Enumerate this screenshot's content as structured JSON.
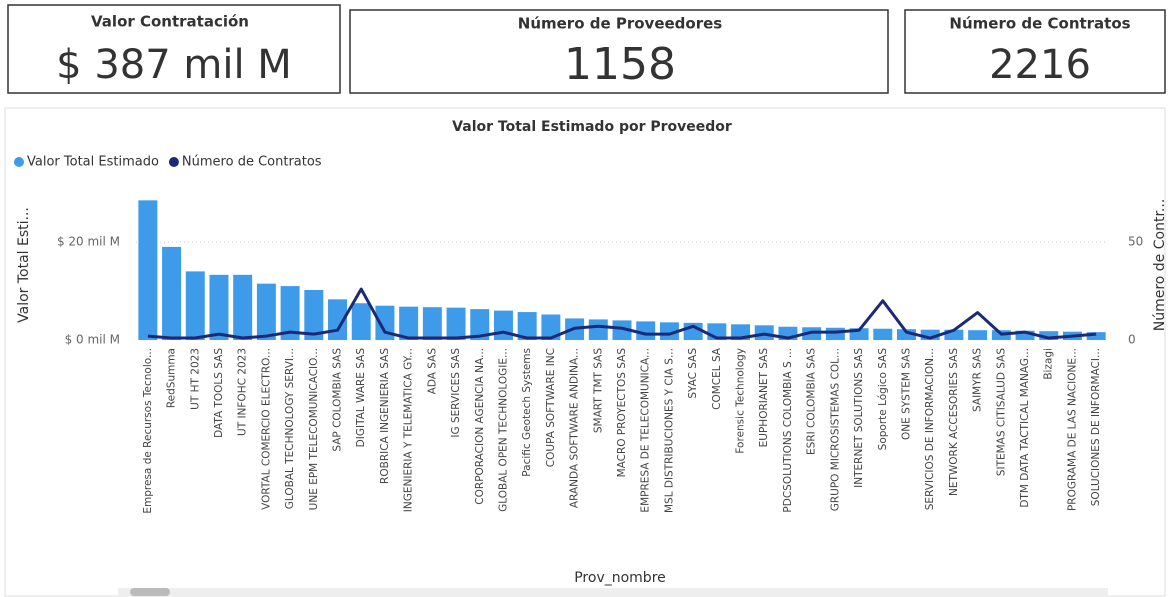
{
  "cards": [
    {
      "title": "Valor Contratación",
      "value": "$ 387 mil M"
    },
    {
      "title": "Número de Proveedores",
      "value": "1158"
    },
    {
      "title": "Número de Contratos",
      "value": "2216"
    }
  ],
  "chart_data": {
    "type": "bar_line",
    "title": "Valor Total Estimado por Proveedor",
    "x_label": "Prov_nombre",
    "y_label": "Valor Total Esti...",
    "y2_label": "Número de Contr...",
    "categories": [
      "Empresa de Recursos Tecnolo...",
      "RedSumma",
      "UT HT 2023",
      "DATA TOOLS SAS",
      "UT INFOHC 2023",
      "VORTAL COMERCIO ELECTRO...",
      "GLOBAL TECHNOLOGY SERVI...",
      "UNE EPM TELECOMUNICACIO...",
      "SAP COLOMBIA SAS",
      "DIGITAL WARE SAS",
      "ROBRICA INGENIERIA SAS",
      "INGENIERIA Y TELEMATICA GY...",
      "ADA SAS",
      "IG SERVICES SAS",
      "CORPORACION AGENCIA NA...",
      "GLOBAL OPEN TECHNOLOGIE...",
      "Pacific Geotech Systems",
      "COUPA SOFTWARE INC",
      "ARANDA SOFTWARE ANDINA...",
      "SMART TMT SAS",
      "MACRO PROYECTOS SAS",
      "EMPRESA DE TELECOMUNICA...",
      "MSL DISTRIBUCIONES Y CIA S...",
      "SYAC SAS",
      "COMCEL SA",
      "Forensic Technology",
      "EUPHORIANET SAS",
      "PDCSOLUTIONS COLOMBIA S ...",
      "ESRI COLOMBIA SAS",
      "GRUPO MICROSISTEMAS COL...",
      "INTERNET SOLUTIONS SAS",
      "Soporte Lógico SAS",
      "ONE SYSTEM SAS",
      "SERVICIOS DE INFORMACION...",
      "NETWORK ACCESORIES SAS",
      "SAIMYR SAS",
      "SITEMAS CITISALUD SAS",
      "DTM DATA TACTICAL MANAG...",
      "Bizagi",
      "PROGRAMA DE LAS NACIONE...",
      "SOLUCIONES DE INFORMACI..."
    ],
    "series": [
      {
        "name": "Valor Total Estimado",
        "type": "bar",
        "color": "#3d9be9",
        "values": [
          28.5,
          19,
          14,
          13.3,
          13.3,
          11.5,
          11,
          10.2,
          8.3,
          7.5,
          7,
          6.8,
          6.7,
          6.6,
          6.3,
          6,
          5.7,
          5.2,
          4.4,
          4.2,
          4,
          3.8,
          3.6,
          3.5,
          3.4,
          3.2,
          3,
          2.7,
          2.6,
          2.5,
          2.4,
          2.3,
          2.2,
          2.1,
          2.1,
          2,
          2,
          1.9,
          1.8,
          1.7,
          1.6
        ]
      },
      {
        "name": "Número de Contratos",
        "type": "line",
        "axis": "y2",
        "color": "#1b2a78",
        "values": [
          2,
          1,
          1,
          3,
          1,
          2,
          4,
          3,
          5,
          26,
          4,
          1,
          1,
          1,
          2,
          4,
          1,
          1,
          6,
          7,
          6,
          3,
          3,
          7,
          1,
          1,
          3,
          1,
          4,
          4,
          5,
          20,
          4,
          1,
          5,
          14,
          3,
          4,
          1,
          2,
          3
        ]
      }
    ],
    "ylim": [
      0,
      30
    ],
    "yticks": [
      {
        "value": 0,
        "label": "$ 0 mil M"
      },
      {
        "value": 20,
        "label": "$ 20 mil M"
      }
    ],
    "y2lim": [
      0,
      75
    ],
    "y2ticks": [
      0,
      50
    ],
    "grid": true,
    "legend": "top-left"
  }
}
